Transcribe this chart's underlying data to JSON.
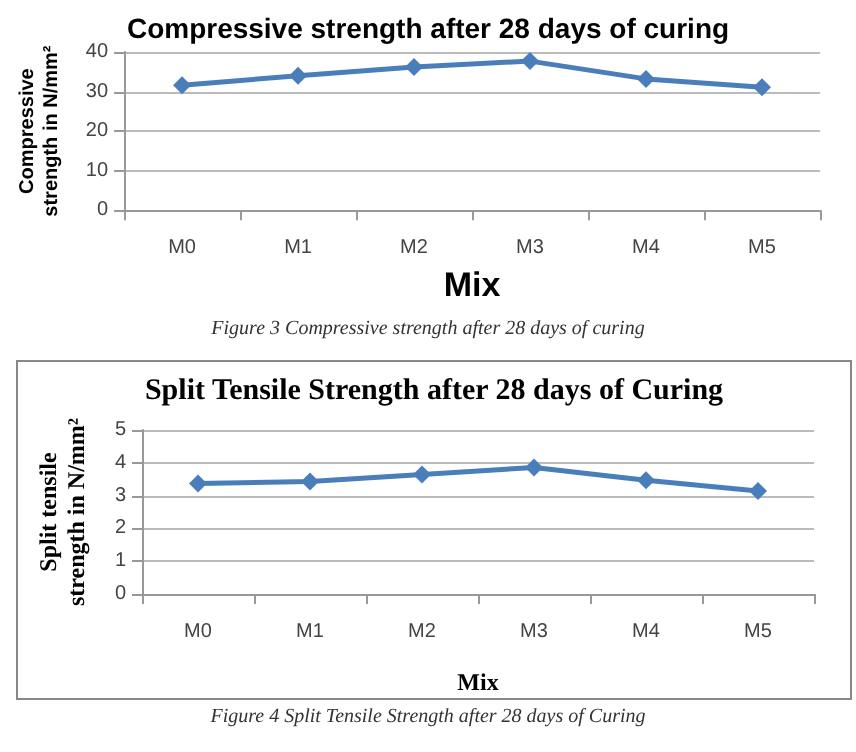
{
  "chart_data": [
    {
      "type": "line",
      "title": "Compressive strength after 28 days of curing",
      "xlabel": "Mix",
      "ylabel": "Compressive strength in N/mm²",
      "categories": [
        "M0",
        "M1",
        "M2",
        "M3",
        "M4",
        "M5"
      ],
      "series": [
        {
          "color": "#4a7ebb",
          "values": [
            31.6,
            34.0,
            36.2,
            37.7,
            33.2,
            31.1
          ]
        }
      ],
      "ylim": [
        0,
        40
      ],
      "yticks": [
        0,
        10,
        20,
        30,
        40
      ],
      "grid": "y",
      "marker": "diamond",
      "line_style": "solid",
      "annotations": [
        "Figure 3 Compressive strength after 28 days of curing"
      ]
    },
    {
      "type": "line",
      "title": "Split Tensile Strength after 28 days of Curing",
      "xlabel": "Mix",
      "ylabel": "Split tensile strength in N/mm²",
      "categories": [
        "M0",
        "M1",
        "M2",
        "M3",
        "M4",
        "M5"
      ],
      "series": [
        {
          "color": "#4a7ebb",
          "values": [
            3.37,
            3.43,
            3.64,
            3.86,
            3.47,
            3.14
          ]
        }
      ],
      "ylim": [
        0,
        5
      ],
      "yticks": [
        0,
        1,
        2,
        3,
        4,
        5
      ],
      "grid": "y",
      "marker": "diamond",
      "line_style": "solid",
      "annotations": [
        "Figure 4 Split Tensile Strength after 28 days of Curing"
      ]
    }
  ]
}
